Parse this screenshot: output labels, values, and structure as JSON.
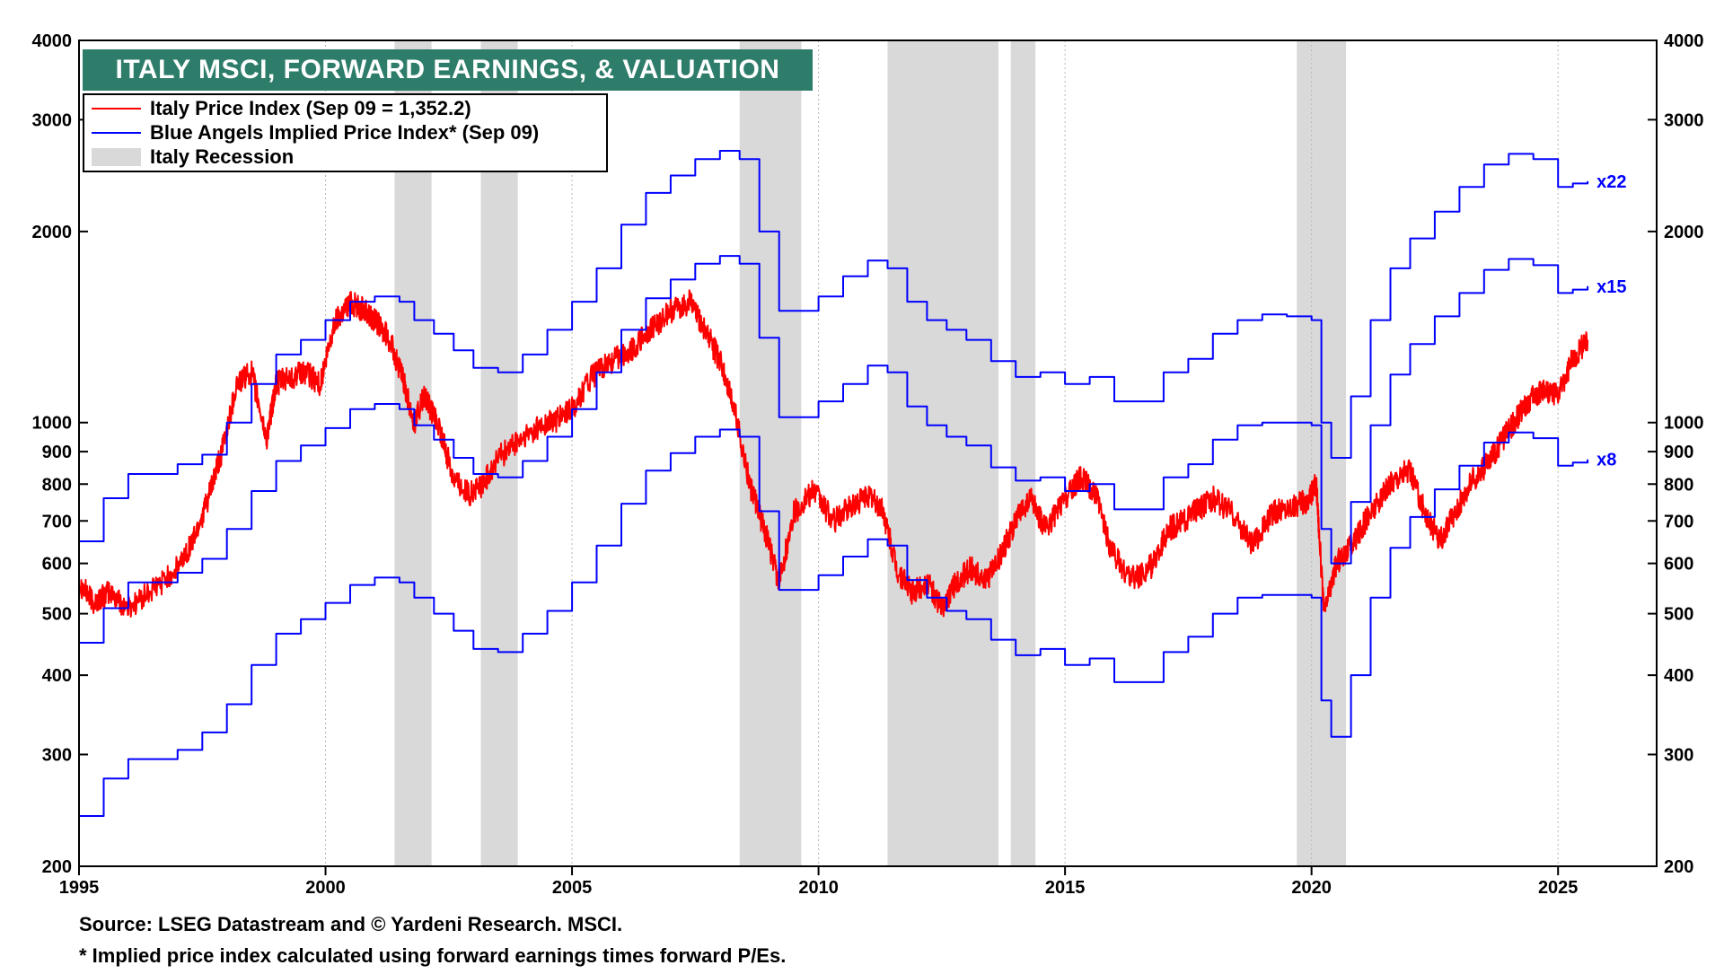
{
  "chart_data": {
    "type": "line",
    "title": "ITALY MSCI, FORWARD EARNINGS, & VALUATION",
    "y_scale": "log",
    "xlim": [
      1995,
      2027
    ],
    "ylim": [
      200,
      4000
    ],
    "x_ticks": [
      "1995",
      "2000",
      "2005",
      "2010",
      "2015",
      "2020",
      "2025"
    ],
    "y_ticks": [
      200,
      300,
      400,
      500,
      600,
      700,
      800,
      900,
      1000,
      2000,
      3000,
      4000
    ],
    "y_tick_labels": [
      "200",
      "300",
      "400",
      "500",
      "600",
      "700",
      "800",
      "900",
      "1000",
      "2000",
      "3000",
      "4000"
    ],
    "grid": "vertical dotted at x ticks",
    "legend_position": "top-left",
    "legend": [
      {
        "label": "Italy Price Index (Sep 09 = 1,352.2)",
        "color": "#ff0000",
        "kind": "line"
      },
      {
        "label": "Blue Angels Implied Price Index* (Sep 09)",
        "color": "#0000ff",
        "kind": "line"
      },
      {
        "label": "Italy Recession",
        "color": "#d9d9d9",
        "kind": "band"
      }
    ],
    "recessions": [
      [
        2001.4,
        2002.15
      ],
      [
        2003.15,
        2003.9
      ],
      [
        2008.4,
        2009.65
      ],
      [
        2011.4,
        2013.65
      ],
      [
        2013.9,
        2014.4
      ],
      [
        2019.7,
        2020.7
      ]
    ],
    "series": [
      {
        "name": "Italy Price Index (Sep 09 = 1,352.2)",
        "color": "#ff0000",
        "x": [
          1995.0,
          1995.3,
          1995.6,
          1996.0,
          1996.5,
          1997.0,
          1997.3,
          1997.6,
          1997.9,
          1998.2,
          1998.5,
          1998.8,
          1999.0,
          1999.3,
          1999.6,
          1999.9,
          2000.2,
          2000.5,
          2000.8,
          2001.0,
          2001.3,
          2001.6,
          2001.8,
          2002.0,
          2002.3,
          2002.6,
          2002.9,
          2003.2,
          2003.5,
          2003.9,
          2004.3,
          2004.7,
          2005.0,
          2005.4,
          2005.8,
          2006.2,
          2006.6,
          2007.0,
          2007.4,
          2007.7,
          2008.0,
          2008.3,
          2008.6,
          2008.9,
          2009.2,
          2009.5,
          2009.9,
          2010.3,
          2010.7,
          2011.0,
          2011.3,
          2011.6,
          2011.9,
          2012.2,
          2012.5,
          2012.8,
          2013.1,
          2013.4,
          2013.7,
          2014.0,
          2014.3,
          2014.6,
          2015.0,
          2015.3,
          2015.6,
          2015.9,
          2016.2,
          2016.5,
          2016.8,
          2017.1,
          2017.4,
          2017.7,
          2018.0,
          2018.4,
          2018.8,
          2019.2,
          2019.6,
          2019.9,
          2020.1,
          2020.25,
          2020.5,
          2020.8,
          2021.1,
          2021.4,
          2021.7,
          2022.0,
          2022.3,
          2022.6,
          2022.9,
          2023.2,
          2023.5,
          2023.8,
          2024.1,
          2024.4,
          2024.7,
          2025.0,
          2025.3,
          2025.6
        ],
        "y": [
          560,
          520,
          540,
          510,
          545,
          590,
          650,
          750,
          900,
          1150,
          1200,
          940,
          1150,
          1180,
          1200,
          1150,
          1450,
          1550,
          1500,
          1450,
          1350,
          1150,
          1000,
          1100,
          980,
          820,
          770,
          800,
          880,
          930,
          980,
          1010,
          1050,
          1180,
          1250,
          1300,
          1400,
          1500,
          1550,
          1400,
          1250,
          1050,
          800,
          680,
          560,
          720,
          780,
          700,
          740,
          770,
          730,
          580,
          540,
          560,
          510,
          560,
          590,
          560,
          620,
          700,
          760,
          680,
          760,
          820,
          780,
          640,
          580,
          570,
          600,
          680,
          700,
          730,
          760,
          720,
          640,
          720,
          740,
          750,
          800,
          500,
          600,
          640,
          700,
          760,
          820,
          840,
          720,
          650,
          720,
          800,
          850,
          920,
          1000,
          1080,
          1130,
          1100,
          1260,
          1350
        ]
      },
      {
        "name": "x22",
        "color": "#0000ff",
        "x": [
          1995.0,
          1995.5,
          1996.0,
          1996.5,
          1997.0,
          1997.5,
          1998.0,
          1998.5,
          1999.0,
          1999.5,
          2000.0,
          2000.5,
          2001.0,
          2001.5,
          2001.8,
          2002.2,
          2002.6,
          2003.0,
          2003.5,
          2004.0,
          2004.5,
          2005.0,
          2005.5,
          2006.0,
          2006.5,
          2007.0,
          2007.5,
          2008.0,
          2008.4,
          2008.8,
          2009.2,
          2009.6,
          2010.0,
          2010.5,
          2011.0,
          2011.4,
          2011.8,
          2012.2,
          2012.6,
          2013.0,
          2013.5,
          2014.0,
          2014.5,
          2015.0,
          2015.5,
          2016.0,
          2016.5,
          2017.0,
          2017.5,
          2018.0,
          2018.5,
          2019.0,
          2019.5,
          2020.0,
          2020.2,
          2020.4,
          2020.8,
          2021.2,
          2021.6,
          2022.0,
          2022.5,
          2023.0,
          2023.5,
          2024.0,
          2024.5,
          2025.0,
          2025.3,
          2025.6
        ],
        "y": [
          650,
          760,
          830,
          830,
          860,
          890,
          1000,
          1150,
          1280,
          1350,
          1450,
          1550,
          1580,
          1550,
          1450,
          1380,
          1300,
          1220,
          1200,
          1280,
          1400,
          1550,
          1750,
          2050,
          2300,
          2450,
          2600,
          2680,
          2600,
          2000,
          1500,
          1500,
          1580,
          1700,
          1800,
          1750,
          1550,
          1450,
          1400,
          1350,
          1250,
          1180,
          1200,
          1150,
          1180,
          1080,
          1080,
          1200,
          1260,
          1380,
          1450,
          1480,
          1470,
          1450,
          1000,
          880,
          1100,
          1450,
          1750,
          1950,
          2150,
          2350,
          2550,
          2650,
          2600,
          2350,
          2380,
          2400
        ]
      },
      {
        "name": "x15",
        "color": "#0000ff",
        "x": [
          1995.0,
          1995.5,
          1996.0,
          1996.5,
          1997.0,
          1997.5,
          1998.0,
          1998.5,
          1999.0,
          1999.5,
          2000.0,
          2000.5,
          2001.0,
          2001.5,
          2001.8,
          2002.2,
          2002.6,
          2003.0,
          2003.5,
          2004.0,
          2004.5,
          2005.0,
          2005.5,
          2006.0,
          2006.5,
          2007.0,
          2007.5,
          2008.0,
          2008.4,
          2008.8,
          2009.2,
          2009.6,
          2010.0,
          2010.5,
          2011.0,
          2011.4,
          2011.8,
          2012.2,
          2012.6,
          2013.0,
          2013.5,
          2014.0,
          2014.5,
          2015.0,
          2015.5,
          2016.0,
          2016.5,
          2017.0,
          2017.5,
          2018.0,
          2018.5,
          2019.0,
          2019.5,
          2020.0,
          2020.2,
          2020.4,
          2020.8,
          2021.2,
          2021.6,
          2022.0,
          2022.5,
          2023.0,
          2023.5,
          2024.0,
          2024.5,
          2025.0,
          2025.3,
          2025.6
        ],
        "y": [
          450,
          510,
          560,
          560,
          580,
          610,
          680,
          780,
          870,
          920,
          980,
          1050,
          1070,
          1050,
          990,
          940,
          880,
          830,
          820,
          870,
          950,
          1050,
          1200,
          1400,
          1570,
          1680,
          1780,
          1830,
          1780,
          1360,
          1020,
          1020,
          1080,
          1150,
          1230,
          1200,
          1060,
          990,
          950,
          920,
          850,
          810,
          820,
          780,
          800,
          730,
          730,
          820,
          860,
          940,
          990,
          1000,
          1000,
          990,
          680,
          600,
          750,
          990,
          1190,
          1330,
          1470,
          1600,
          1740,
          1810,
          1770,
          1600,
          1620,
          1640
        ]
      },
      {
        "name": "x8",
        "color": "#0000ff",
        "x": [
          1995.0,
          1995.5,
          1996.0,
          1996.5,
          1997.0,
          1997.5,
          1998.0,
          1998.5,
          1999.0,
          1999.5,
          2000.0,
          2000.5,
          2001.0,
          2001.5,
          2001.8,
          2002.2,
          2002.6,
          2003.0,
          2003.5,
          2004.0,
          2004.5,
          2005.0,
          2005.5,
          2006.0,
          2006.5,
          2007.0,
          2007.5,
          2008.0,
          2008.4,
          2008.8,
          2009.2,
          2009.6,
          2010.0,
          2010.5,
          2011.0,
          2011.4,
          2011.8,
          2012.2,
          2012.6,
          2013.0,
          2013.5,
          2014.0,
          2014.5,
          2015.0,
          2015.5,
          2016.0,
          2016.5,
          2017.0,
          2017.5,
          2018.0,
          2018.5,
          2019.0,
          2019.5,
          2020.0,
          2020.2,
          2020.4,
          2020.8,
          2021.2,
          2021.6,
          2022.0,
          2022.5,
          2023.0,
          2023.5,
          2024.0,
          2024.5,
          2025.0,
          2025.3,
          2025.6
        ],
        "y": [
          240,
          275,
          295,
          295,
          305,
          325,
          360,
          415,
          465,
          490,
          520,
          555,
          570,
          560,
          530,
          500,
          470,
          440,
          435,
          465,
          505,
          560,
          640,
          745,
          840,
          895,
          950,
          975,
          950,
          725,
          545,
          545,
          575,
          615,
          655,
          640,
          565,
          530,
          505,
          490,
          455,
          430,
          440,
          415,
          425,
          390,
          390,
          435,
          460,
          500,
          530,
          535,
          535,
          530,
          365,
          320,
          400,
          530,
          635,
          710,
          785,
          855,
          930,
          965,
          945,
          855,
          865,
          875
        ]
      }
    ],
    "series_end_labels": [
      "x22",
      "x15",
      "x8"
    ]
  },
  "footnotes": {
    "source": "Source: LSEG Datastream and © Yardeni Research. MSCI.",
    "note": "* Implied price index calculated using forward earnings times forward P/Es."
  }
}
